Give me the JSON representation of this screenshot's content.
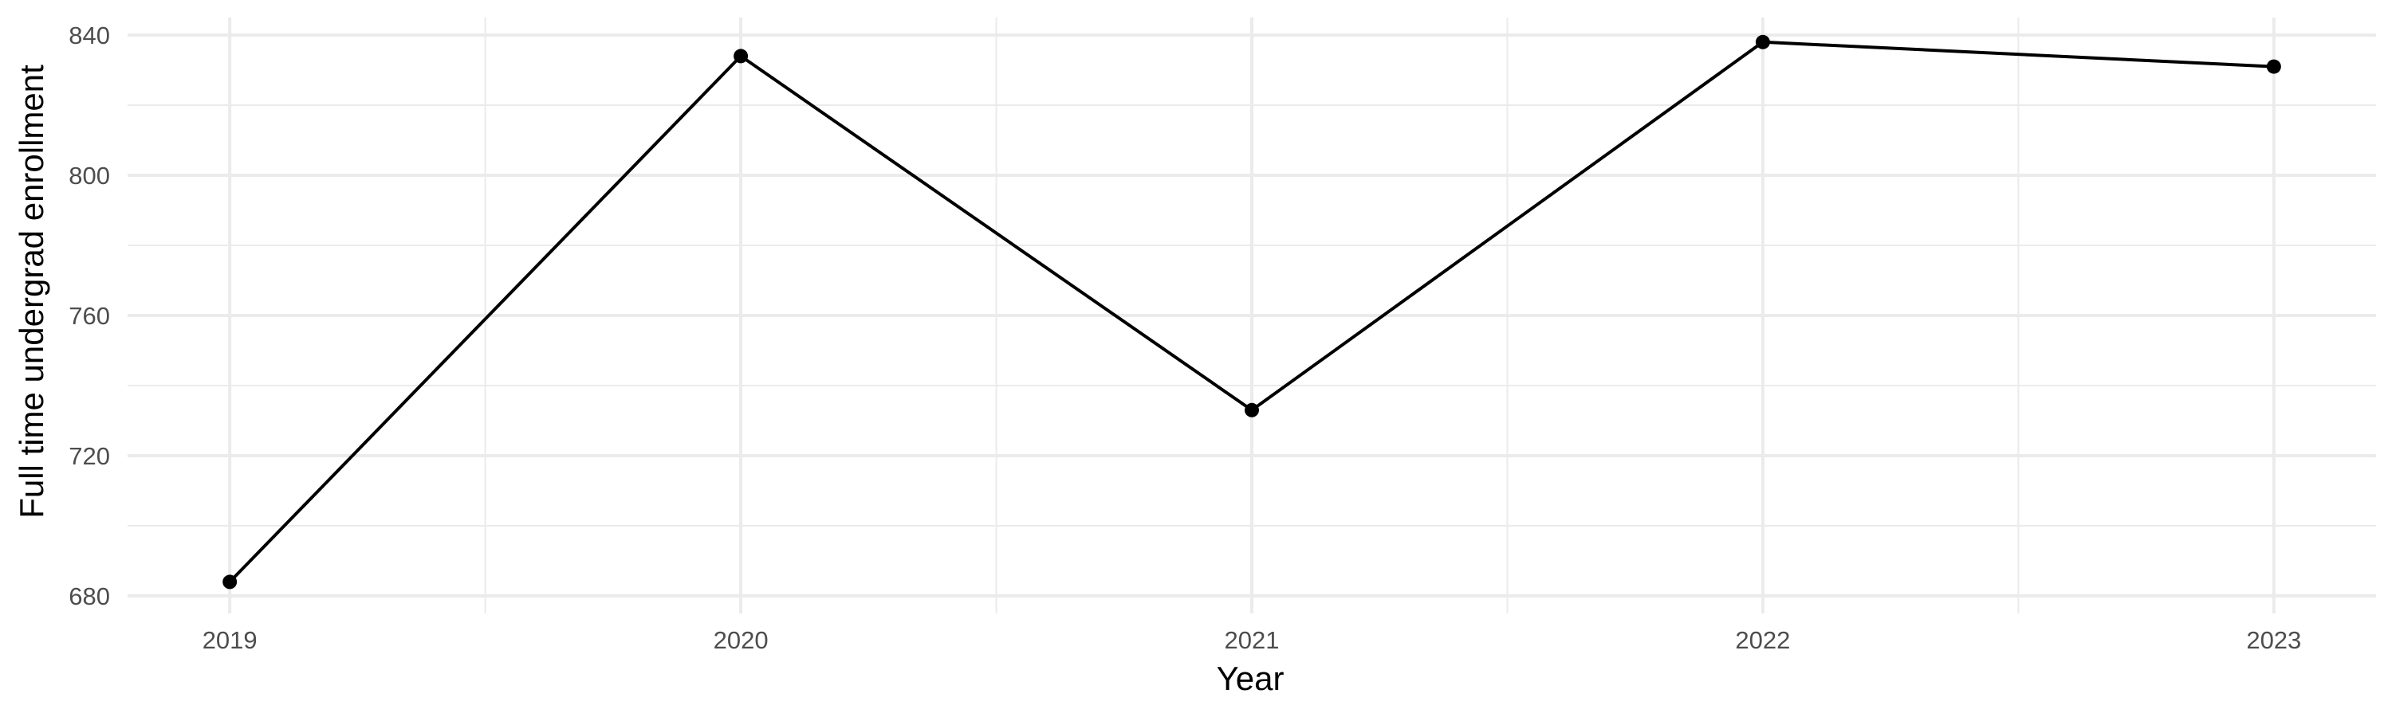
{
  "chart_data": {
    "type": "line",
    "title": "",
    "xlabel": "Year",
    "ylabel": "Full time undergrad enrollment",
    "x": [
      2019,
      2020,
      2021,
      2022,
      2023
    ],
    "series": [
      {
        "values": [
          684,
          834,
          733,
          838,
          831
        ]
      }
    ],
    "x_ticks": [
      "2019",
      "2020",
      "2021",
      "2022",
      "2023"
    ],
    "y_ticks": [
      680,
      720,
      760,
      800,
      840
    ],
    "xlim": [
      2018.8,
      2023.2
    ],
    "ylim": [
      675,
      845
    ],
    "grid": true,
    "line_color": "#000000",
    "grid_color": "#ebebeb",
    "background": "#ffffff"
  }
}
